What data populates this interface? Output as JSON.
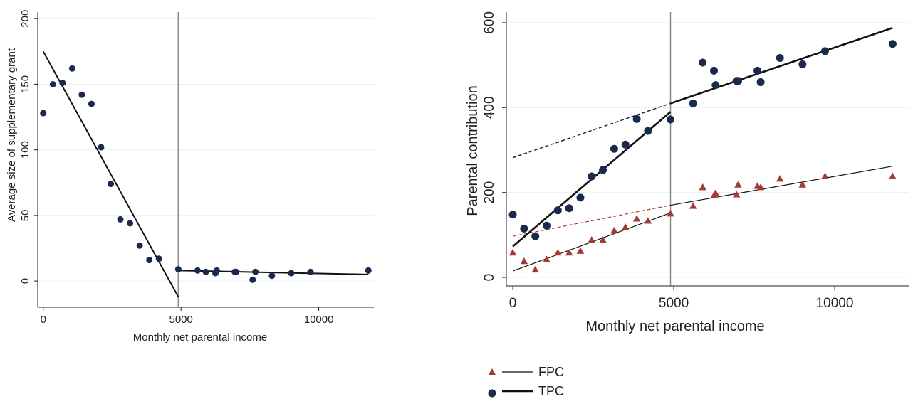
{
  "chart_data": [
    {
      "type": "scatter",
      "xlabel": "Monthly net parental income",
      "ylabel": "Average size of supplementary grant",
      "xlim": [
        -200,
        12000
      ],
      "ylim": [
        -20,
        205
      ],
      "x_ticks": [
        0,
        5000,
        10000
      ],
      "x_tick_labels": [
        "0",
        "5000",
        "10000"
      ],
      "y_ticks": [
        0,
        50,
        100,
        150,
        200
      ],
      "y_tick_labels": [
        "0",
        "50",
        "100",
        "150",
        "200"
      ],
      "grid": "horizontal",
      "cutoff_x": 4900,
      "marker_color": "#1a2a4e",
      "series": [
        {
          "points": [
            [
              0,
              128
            ],
            [
              350,
              150
            ],
            [
              700,
              151
            ],
            [
              1050,
              162
            ],
            [
              1400,
              142
            ],
            [
              1750,
              135
            ],
            [
              2100,
              102
            ],
            [
              2450,
              74
            ],
            [
              2800,
              47
            ],
            [
              3150,
              44
            ],
            [
              3500,
              27
            ],
            [
              3850,
              16
            ],
            [
              4200,
              17
            ],
            [
              4900,
              9
            ],
            [
              5600,
              8
            ],
            [
              5900,
              7
            ],
            [
              6250,
              6
            ],
            [
              6300,
              8
            ],
            [
              6950,
              7
            ],
            [
              7000,
              7
            ],
            [
              7600,
              1
            ],
            [
              7700,
              7
            ],
            [
              8300,
              4
            ],
            [
              9000,
              6
            ],
            [
              9700,
              7
            ],
            [
              11800,
              8
            ]
          ]
        }
      ],
      "fit_lines": [
        {
          "from": [
            0,
            175
          ],
          "to": [
            4900,
            -12
          ],
          "width": 2
        },
        {
          "from": [
            4900,
            8
          ],
          "to": [
            11800,
            5
          ],
          "width": 2
        }
      ]
    },
    {
      "type": "scatter",
      "xlabel": "Monthly net parental income",
      "ylabel": "Parental contribution",
      "xlim": [
        -200,
        12300
      ],
      "ylim": [
        -20,
        625
      ],
      "x_ticks": [
        0,
        5000,
        10000
      ],
      "x_tick_labels": [
        "0",
        "5000",
        "10000"
      ],
      "y_ticks": [
        0,
        200,
        400,
        600
      ],
      "y_tick_labels": [
        "0",
        "200",
        "400",
        "600"
      ],
      "grid": "horizontal",
      "cutoff_x": 4900,
      "legend_position": "bottom-left",
      "series": [
        {
          "name": "FPC",
          "marker": "triangle",
          "color": "#a33a3a",
          "points": [
            [
              0,
              58
            ],
            [
              350,
              38
            ],
            [
              700,
              18
            ],
            [
              1050,
              42
            ],
            [
              1400,
              58
            ],
            [
              1750,
              58
            ],
            [
              2100,
              62
            ],
            [
              2450,
              88
            ],
            [
              2800,
              88
            ],
            [
              3150,
              110
            ],
            [
              3500,
              118
            ],
            [
              3850,
              138
            ],
            [
              4200,
              133
            ],
            [
              4900,
              150
            ],
            [
              5600,
              168
            ],
            [
              5900,
              212
            ],
            [
              6250,
              193
            ],
            [
              6300,
              198
            ],
            [
              6950,
              195
            ],
            [
              7000,
              218
            ],
            [
              7600,
              215
            ],
            [
              7700,
              212
            ],
            [
              8300,
              232
            ],
            [
              9000,
              218
            ],
            [
              9700,
              238
            ],
            [
              11800,
              238
            ]
          ],
          "fit_lines": [
            {
              "from": [
                0,
                15
              ],
              "to": [
                4900,
                152
              ],
              "style": "solid",
              "width": 1.2
            },
            {
              "from": [
                4900,
                170
              ],
              "to": [
                11800,
                262
              ],
              "style": "solid",
              "width": 1.2
            },
            {
              "from": [
                0,
                97
              ],
              "to": [
                4900,
                170
              ],
              "style": "dashed",
              "width": 1.2
            }
          ]
        },
        {
          "name": "TPC",
          "marker": "circle",
          "color": "#1a2a4e",
          "points": [
            [
              0,
              148
            ],
            [
              350,
              115
            ],
            [
              700,
              97
            ],
            [
              1050,
              122
            ],
            [
              1400,
              158
            ],
            [
              1750,
              163
            ],
            [
              2100,
              188
            ],
            [
              2450,
              238
            ],
            [
              2800,
              253
            ],
            [
              3150,
              303
            ],
            [
              3500,
              313
            ],
            [
              3850,
              373
            ],
            [
              4200,
              345
            ],
            [
              4900,
              372
            ],
            [
              5600,
              410
            ],
            [
              5900,
              506
            ],
            [
              6250,
              487
            ],
            [
              6300,
              453
            ],
            [
              6950,
              463
            ],
            [
              7000,
              463
            ],
            [
              7600,
              487
            ],
            [
              7700,
              460
            ],
            [
              8300,
              517
            ],
            [
              9000,
              502
            ],
            [
              9700,
              533
            ],
            [
              11800,
              550
            ]
          ],
          "fit_lines": [
            {
              "from": [
                0,
                73
              ],
              "to": [
                4900,
                390
              ],
              "style": "solid",
              "width": 2.6
            },
            {
              "from": [
                4900,
                410
              ],
              "to": [
                11800,
                588
              ],
              "style": "solid",
              "width": 2.6
            },
            {
              "from": [
                0,
                282
              ],
              "to": [
                4900,
                410
              ],
              "style": "dashed",
              "width": 1.5
            }
          ]
        }
      ]
    }
  ]
}
